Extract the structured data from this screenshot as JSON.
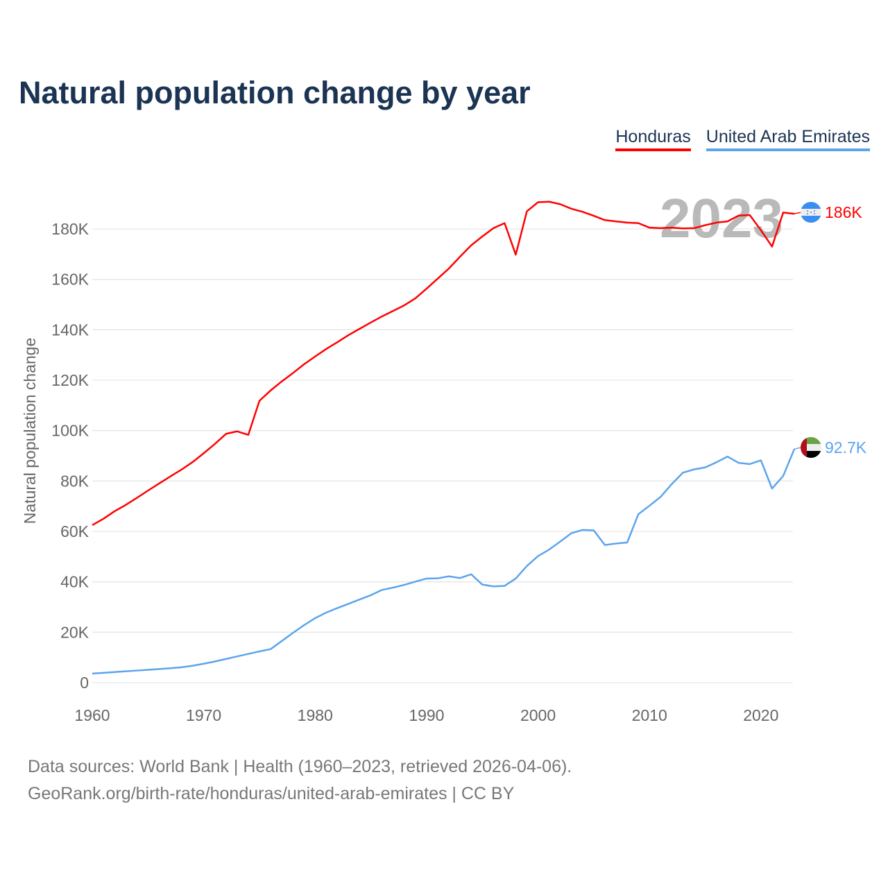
{
  "chart_data": {
    "type": "line",
    "title": "Natural population change by year",
    "ylabel": "Natural population change",
    "xlabel": "",
    "ylim": [
      0,
      180000
    ],
    "xlim": [
      1960,
      2023
    ],
    "yticks": [
      0,
      20000,
      40000,
      60000,
      80000,
      100000,
      120000,
      140000,
      160000,
      180000
    ],
    "ytick_labels": [
      "0",
      "20K",
      "40K",
      "60K",
      "80K",
      "100K",
      "120K",
      "140K",
      "160K",
      "180K"
    ],
    "xticks": [
      1960,
      1970,
      1980,
      1990,
      2000,
      2010,
      2020
    ],
    "xtick_labels": [
      "1960",
      "1970",
      "1980",
      "1990",
      "2000",
      "2010",
      "2020"
    ],
    "grid": true,
    "legend_position": "top-right",
    "year_watermark": "2023",
    "x_start": 1960,
    "series": [
      {
        "name": "Honduras",
        "color": "#ff0000",
        "end_label": "186K",
        "flag": "honduras",
        "values": [
          62500,
          65000,
          68000,
          70500,
          73300,
          76200,
          79000,
          81800,
          84500,
          87500,
          91000,
          94700,
          98700,
          99700,
          98300,
          111800,
          115900,
          119500,
          122800,
          126300,
          129400,
          132400,
          135100,
          137900,
          140400,
          142900,
          145300,
          147500,
          149700,
          152500,
          156300,
          160300,
          164300,
          169000,
          173500,
          177000,
          180300,
          182300,
          169800,
          187000,
          190600,
          190800,
          189800,
          188000,
          186800,
          185200,
          183500,
          183000,
          182500,
          182300,
          180500,
          180300,
          180500,
          180200,
          180300,
          181500,
          182500,
          183000,
          185300,
          185500,
          179500,
          173000,
          186500,
          186000
        ]
      },
      {
        "name": "United Arab Emirates",
        "color": "#5ba4ec",
        "end_label": "92.7K",
        "flag": "uae",
        "values": [
          3600,
          3900,
          4200,
          4500,
          4800,
          5100,
          5400,
          5700,
          6100,
          6700,
          7500,
          8400,
          9400,
          10400,
          11400,
          12400,
          13300,
          16500,
          19700,
          22800,
          25600,
          27800,
          29600,
          31300,
          33000,
          34700,
          36800,
          37700,
          38800,
          40100,
          41300,
          41400,
          42200,
          41500,
          43000,
          38900,
          38200,
          38400,
          41300,
          46300,
          50200,
          52800,
          56000,
          59300,
          60600,
          60400,
          54600,
          55200,
          55600,
          66800,
          70200,
          73700,
          78800,
          83300,
          84600,
          85400,
          87400,
          89700,
          87200,
          86700,
          88200,
          77000,
          82000,
          92700
        ]
      }
    ]
  },
  "footer": {
    "line1": "Data sources: World Bank | Health (1960–2023, retrieved 2026-04-06).",
    "line2": "GeoRank.org/birth-rate/honduras/united-arab-emirates | CC BY"
  }
}
